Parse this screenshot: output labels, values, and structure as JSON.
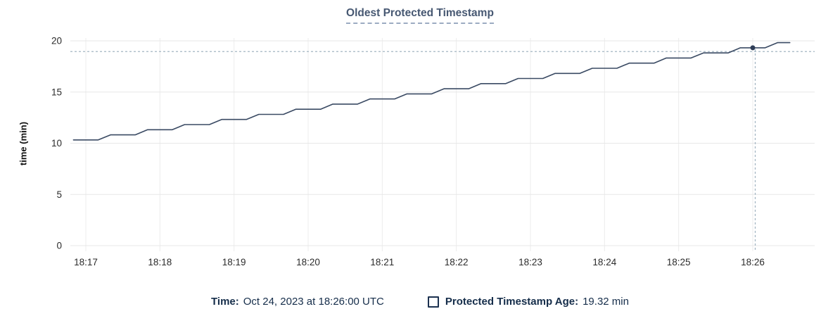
{
  "chart_data": {
    "type": "line",
    "title": "Oldest Protected Timestamp",
    "ylabel": "time (min)",
    "xlabel": "",
    "ylim": [
      0,
      20
    ],
    "y_ticks": [
      0,
      5,
      10,
      15,
      20
    ],
    "x_ticks": [
      "18:17",
      "18:18",
      "18:19",
      "18:20",
      "18:21",
      "18:22",
      "18:23",
      "18:24",
      "18:25",
      "18:26"
    ],
    "grid": "on",
    "legend_position": "bottom",
    "series": [
      {
        "name": "Protected Timestamp Age",
        "unit": "min",
        "points": [
          [
            "18:16:50",
            10.32
          ],
          [
            "18:17:00",
            10.32
          ],
          [
            "18:17:10",
            10.32
          ],
          [
            "18:17:20",
            10.82
          ],
          [
            "18:17:30",
            10.82
          ],
          [
            "18:17:40",
            10.82
          ],
          [
            "18:17:50",
            11.32
          ],
          [
            "18:18:00",
            11.32
          ],
          [
            "18:18:10",
            11.32
          ],
          [
            "18:18:20",
            11.82
          ],
          [
            "18:18:30",
            11.82
          ],
          [
            "18:18:40",
            11.82
          ],
          [
            "18:18:50",
            12.32
          ],
          [
            "18:19:00",
            12.32
          ],
          [
            "18:19:10",
            12.32
          ],
          [
            "18:19:20",
            12.82
          ],
          [
            "18:19:30",
            12.82
          ],
          [
            "18:19:40",
            12.82
          ],
          [
            "18:19:50",
            13.32
          ],
          [
            "18:20:00",
            13.32
          ],
          [
            "18:20:10",
            13.32
          ],
          [
            "18:20:20",
            13.82
          ],
          [
            "18:20:30",
            13.82
          ],
          [
            "18:20:40",
            13.82
          ],
          [
            "18:20:50",
            14.32
          ],
          [
            "18:21:00",
            14.32
          ],
          [
            "18:21:10",
            14.32
          ],
          [
            "18:21:20",
            14.82
          ],
          [
            "18:21:30",
            14.82
          ],
          [
            "18:21:40",
            14.82
          ],
          [
            "18:21:50",
            15.32
          ],
          [
            "18:22:00",
            15.32
          ],
          [
            "18:22:10",
            15.32
          ],
          [
            "18:22:20",
            15.82
          ],
          [
            "18:22:30",
            15.82
          ],
          [
            "18:22:40",
            15.82
          ],
          [
            "18:22:50",
            16.32
          ],
          [
            "18:23:00",
            16.32
          ],
          [
            "18:23:10",
            16.32
          ],
          [
            "18:23:20",
            16.82
          ],
          [
            "18:23:30",
            16.82
          ],
          [
            "18:23:40",
            16.82
          ],
          [
            "18:23:50",
            17.32
          ],
          [
            "18:24:00",
            17.32
          ],
          [
            "18:24:10",
            17.32
          ],
          [
            "18:24:20",
            17.82
          ],
          [
            "18:24:30",
            17.82
          ],
          [
            "18:24:40",
            17.82
          ],
          [
            "18:24:50",
            18.32
          ],
          [
            "18:25:00",
            18.32
          ],
          [
            "18:25:10",
            18.32
          ],
          [
            "18:25:20",
            18.82
          ],
          [
            "18:25:30",
            18.82
          ],
          [
            "18:25:40",
            18.82
          ],
          [
            "18:25:50",
            19.32
          ],
          [
            "18:26:00",
            19.32
          ],
          [
            "18:26:10",
            19.32
          ],
          [
            "18:26:20",
            19.82
          ],
          [
            "18:26:30",
            19.82
          ]
        ]
      }
    ],
    "hover": {
      "time": "18:26:00",
      "value": 19.32,
      "pointer_time": "18:26:02",
      "pointer_value": 18.95
    }
  },
  "legend": {
    "time_label": "Time:",
    "time_value": "Oct 24, 2023 at 18:26:00 UTC",
    "series_label": "Protected Timestamp Age:",
    "series_value": "19.32 min"
  },
  "colors": {
    "line": "#3a4a63",
    "dot": "#2e3d57",
    "grid_h": "#e7e7e7",
    "grid_v": "#ececec",
    "crosshair": "#a3b5c2",
    "title": "#475872",
    "legend_text": "#152d4a",
    "tick_text": "#2b2b2b"
  }
}
